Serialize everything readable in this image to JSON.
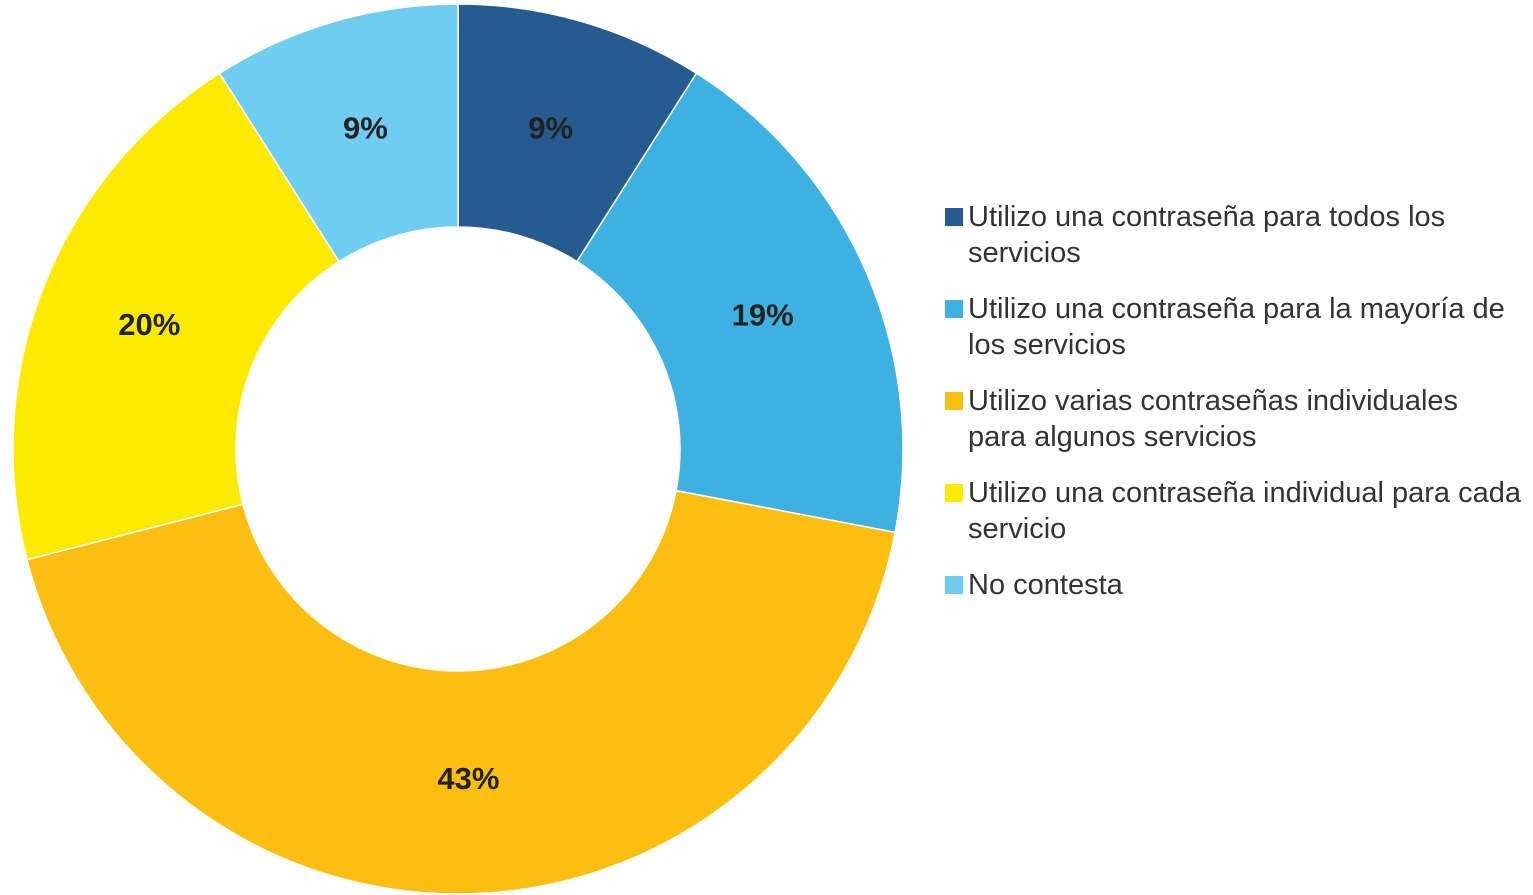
{
  "chart_data": {
    "type": "donut",
    "categories": [
      "Utilizo una contraseña para todos los servicios",
      "Utilizo una contraseña para la mayoría de los servicios",
      "Utilizo varias contraseñas individuales para algunos servicios",
      "Utilizo una contraseña individual para cada servicio",
      "No contesta"
    ],
    "values": [
      9,
      19,
      43,
      20,
      9
    ],
    "value_labels": [
      "9%",
      "19%",
      "43%",
      "20%",
      "9%"
    ],
    "colors": [
      "#265b8f",
      "#3cb1e2",
      "#fcbf10",
      "#feea00",
      "#6fcdf2"
    ],
    "legend": "right"
  }
}
